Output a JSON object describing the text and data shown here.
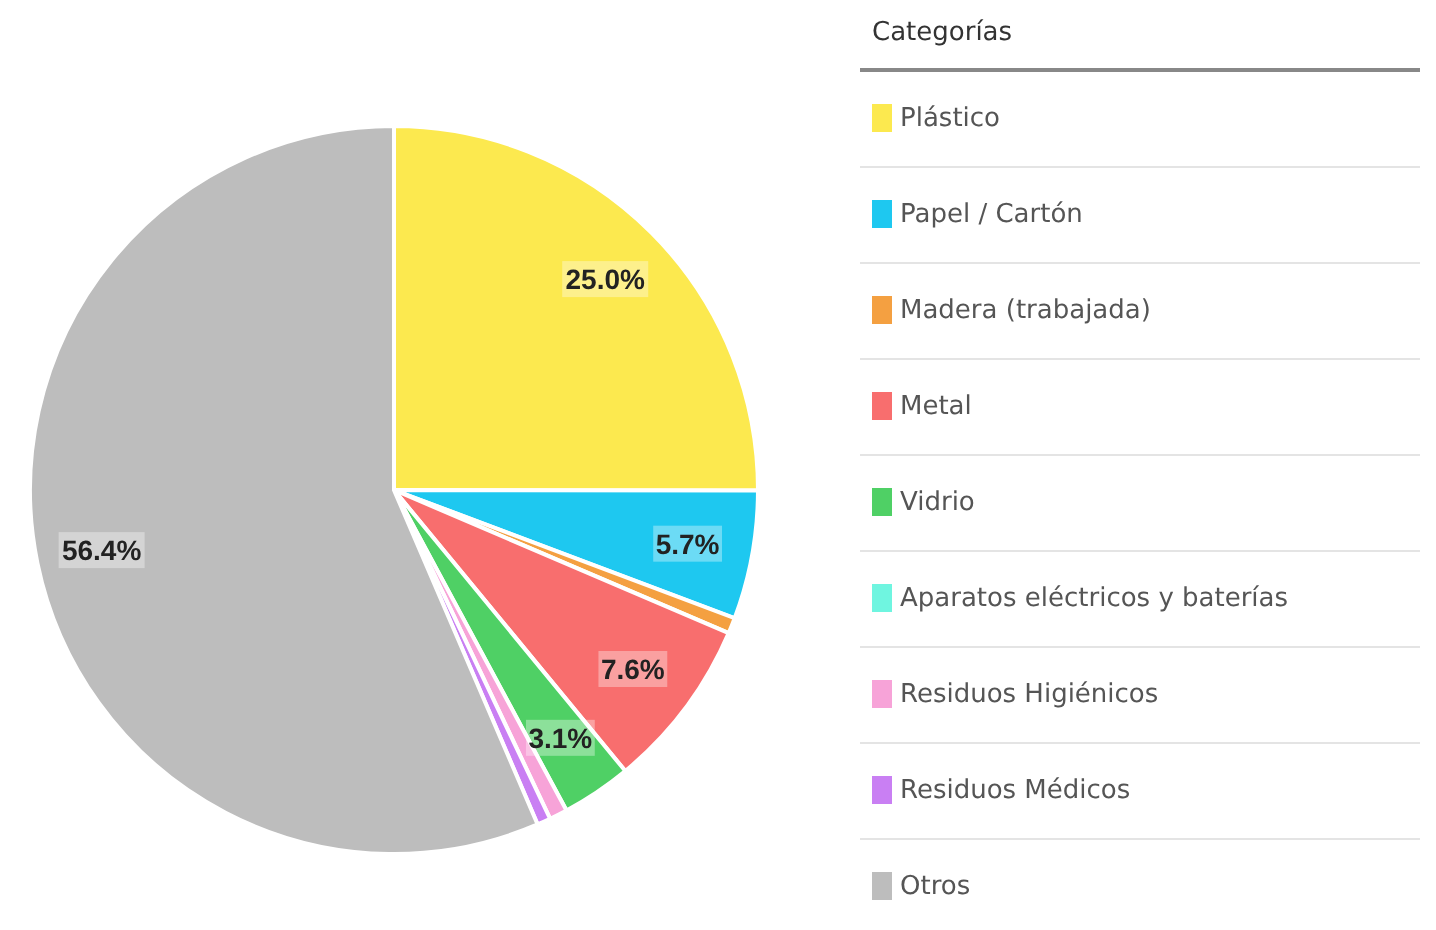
{
  "chart_data": {
    "type": "pie",
    "legend_title": "Categorías",
    "legend": "right",
    "categories": [
      "Plástico",
      "Papel / Cartón",
      "Madera (trabajada)",
      "Metal",
      "Vidrio",
      "Aparatos eléctricos y baterías",
      "Residuos Higiénicos",
      "Residuos Médicos",
      "Otros"
    ],
    "values": [
      25.0,
      5.7,
      0.7,
      7.6,
      3.1,
      null,
      0.8,
      0.6,
      56.4
    ],
    "colors": [
      "#fce94f",
      "#1ec8f0",
      "#f4a041",
      "#f86e6e",
      "#4fd065",
      "#6ff5e0",
      "#f7a3d8",
      "#c97ff3",
      "#bdbdbd"
    ],
    "value_labels": [
      "25.0%",
      "5.7%",
      null,
      "7.6%",
      "3.1%",
      null,
      null,
      null,
      "56.4%"
    ]
  }
}
